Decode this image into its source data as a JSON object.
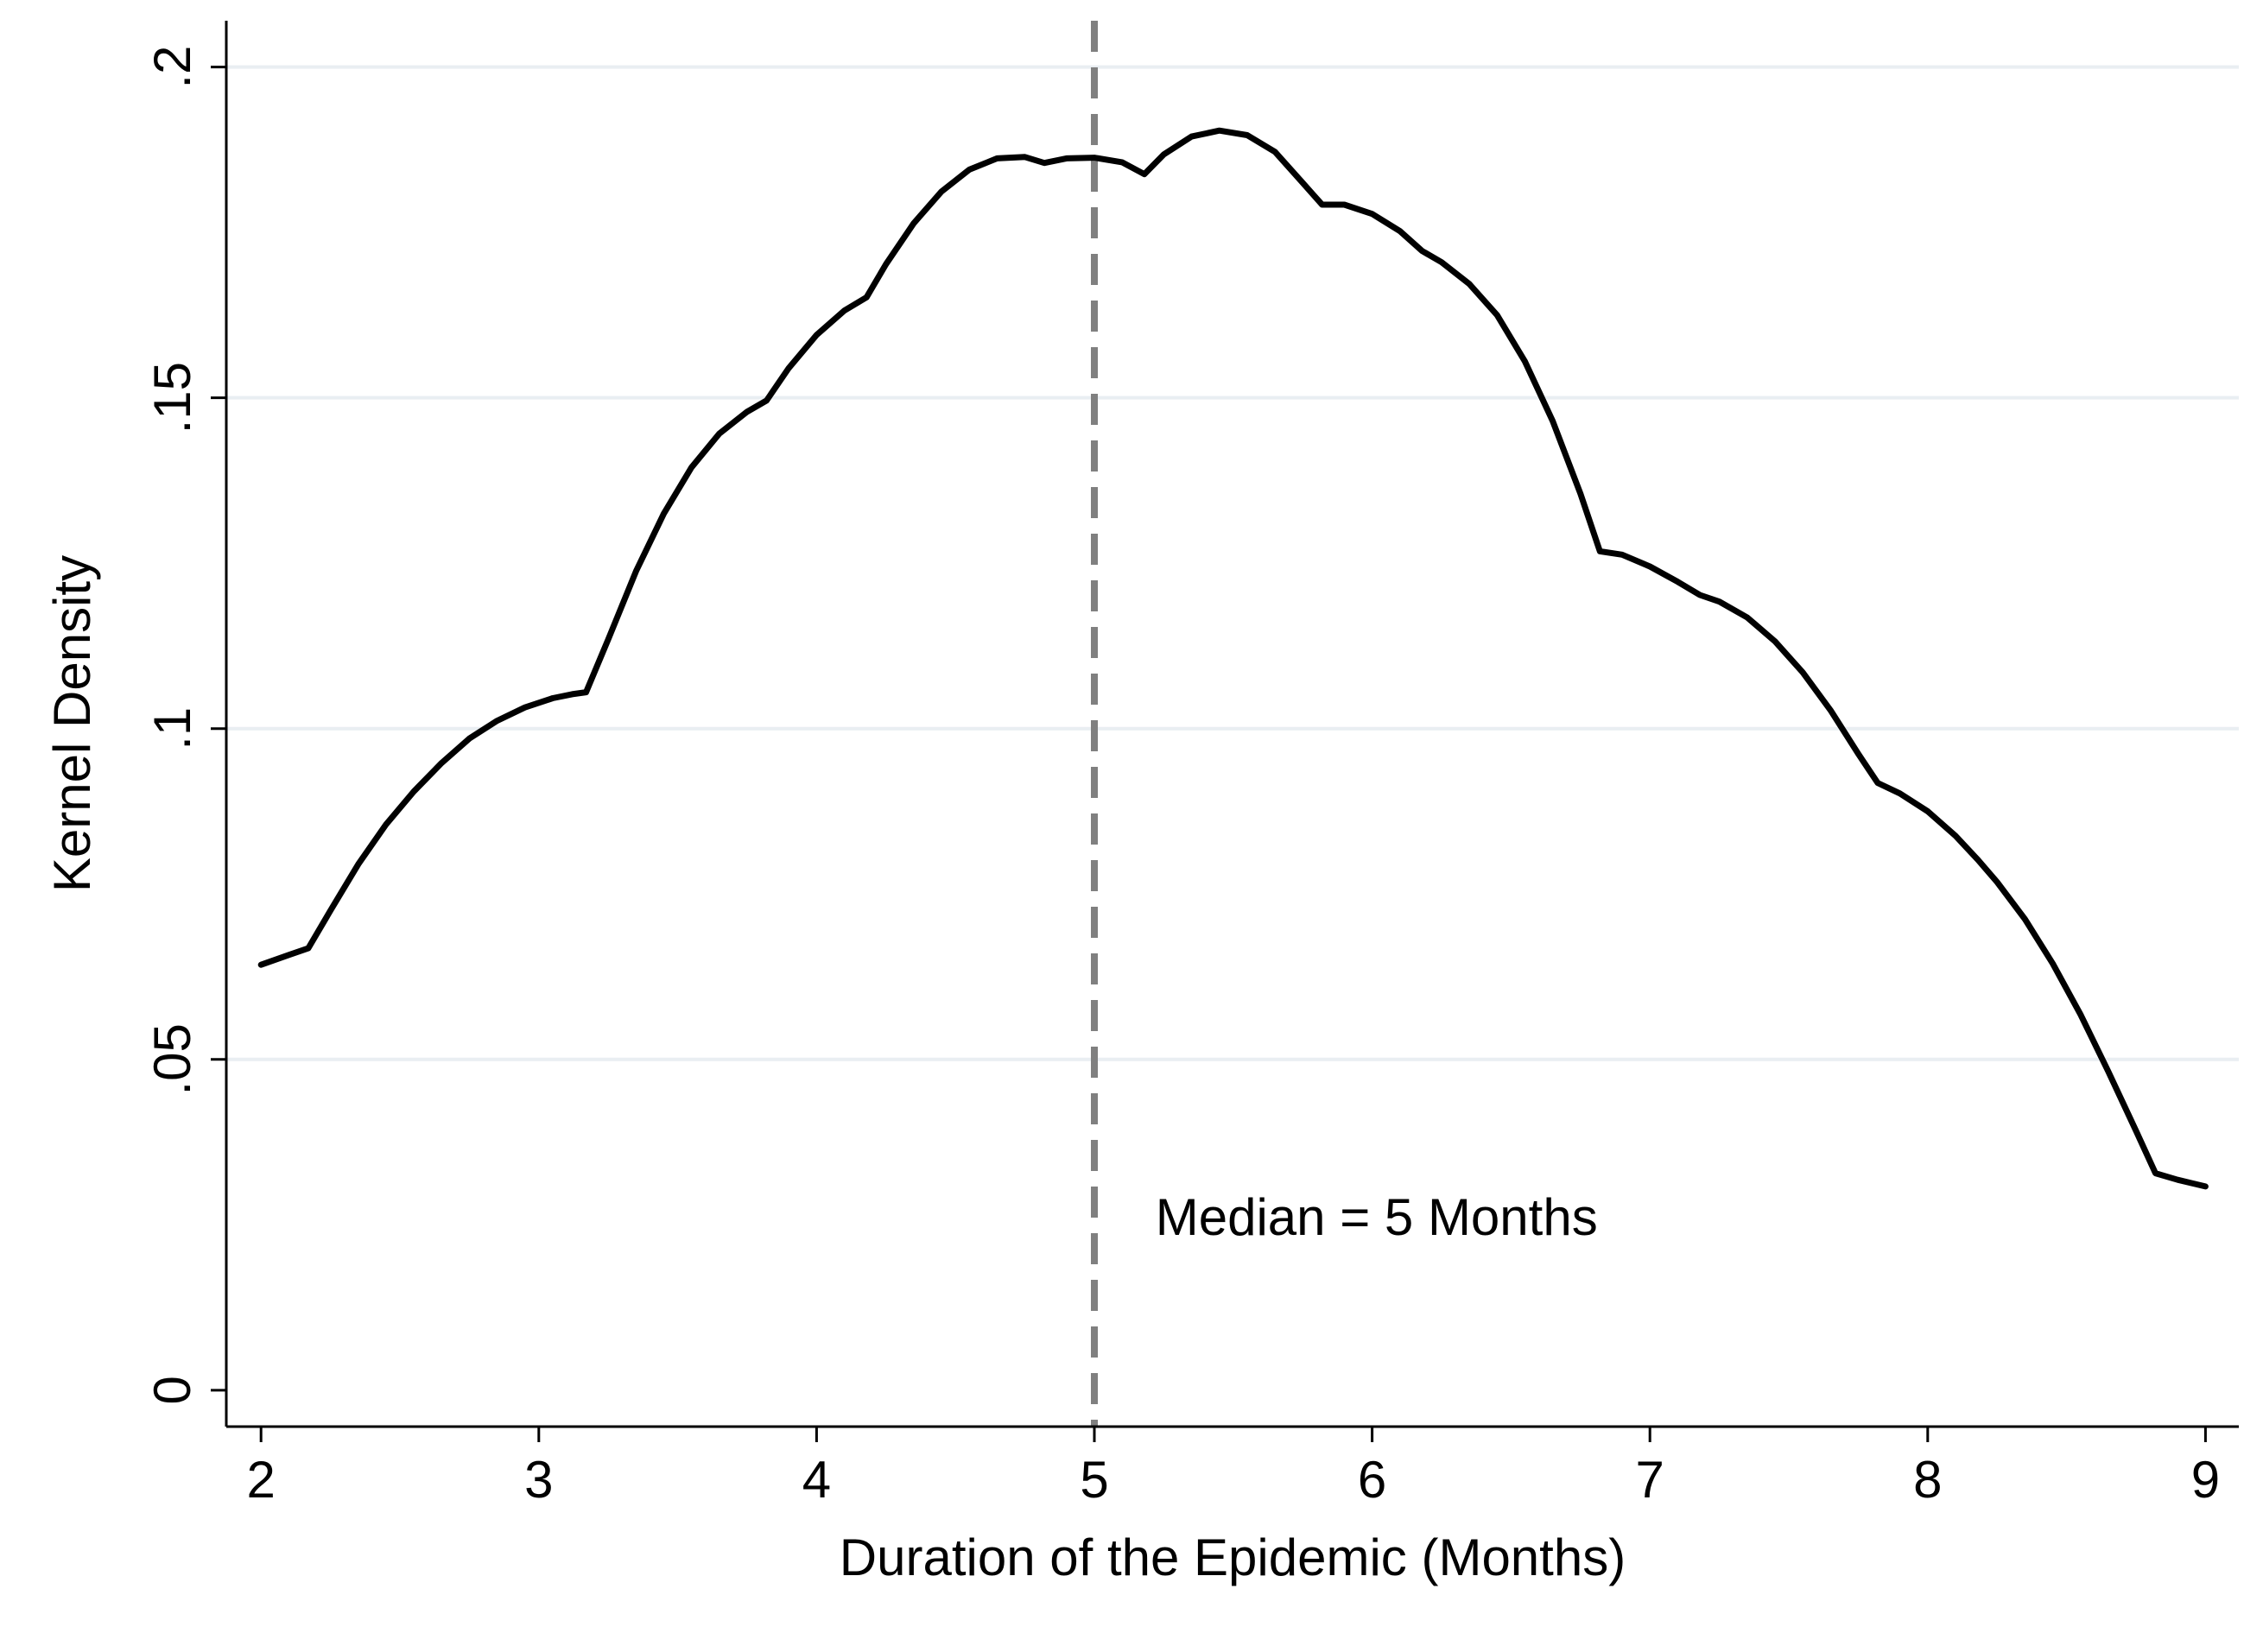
{
  "chart_data": {
    "type": "line",
    "title": "",
    "xlabel": "Duration of the Epidemic (Months)",
    "ylabel": "Kernel Density",
    "xlim": [
      1.875,
      9.12
    ],
    "ylim": [
      -0.0055,
      0.207
    ],
    "x_ticks": [
      2,
      3,
      4,
      5,
      6,
      7,
      8,
      9
    ],
    "x_tick_labels": [
      "2",
      "3",
      "4",
      "5",
      "6",
      "7",
      "8",
      "9"
    ],
    "y_ticks": [
      0,
      0.05,
      0.1,
      0.15,
      0.2
    ],
    "y_tick_labels": [
      "0",
      ".05",
      ".1",
      ".15",
      ".2"
    ],
    "grid": "horizontal",
    "legend": "none",
    "series": [
      {
        "x": [
          2.0,
          2.1,
          2.17,
          2.25,
          2.35,
          2.45,
          2.55,
          2.65,
          2.75,
          2.85,
          2.95,
          3.05,
          3.12,
          3.17,
          3.25,
          3.35,
          3.45,
          3.55,
          3.65,
          3.75,
          3.82,
          3.9,
          4.0,
          4.1,
          4.18,
          4.25,
          4.35,
          4.45,
          4.55,
          4.65,
          4.75,
          4.82,
          4.9,
          5.0,
          5.1,
          5.18,
          5.25,
          5.35,
          5.45,
          5.55,
          5.65,
          5.75,
          5.82,
          5.9,
          6.0,
          6.1,
          6.18,
          6.25,
          6.35,
          6.45,
          6.55,
          6.65,
          6.75,
          6.82,
          6.9,
          7.0,
          7.1,
          7.18,
          7.25,
          7.35,
          7.45,
          7.55,
          7.65,
          7.75,
          7.82,
          7.9,
          8.0,
          8.1,
          8.18,
          8.25,
          8.35,
          8.45,
          8.55,
          8.65,
          8.75,
          8.82,
          8.9,
          9.0
        ],
        "y": [
          0.0643,
          0.0658,
          0.0668,
          0.0725,
          0.0795,
          0.0855,
          0.0905,
          0.0948,
          0.0985,
          0.1012,
          0.1032,
          0.1046,
          0.1052,
          0.1055,
          0.1135,
          0.1238,
          0.1325,
          0.1395,
          0.1446,
          0.1479,
          0.1496,
          0.1545,
          0.1595,
          0.1632,
          0.1652,
          0.1702,
          0.1764,
          0.1812,
          0.1845,
          0.1862,
          0.1864,
          0.1855,
          0.1862,
          0.1863,
          0.1856,
          0.1838,
          0.1868,
          0.1895,
          0.1904,
          0.1897,
          0.1872,
          0.1825,
          0.1792,
          0.1792,
          0.1778,
          0.1752,
          0.1722,
          0.1705,
          0.1672,
          0.1625,
          0.1555,
          0.1465,
          0.1355,
          0.1268,
          0.1263,
          0.1245,
          0.1222,
          0.1202,
          0.1192,
          0.1168,
          0.1132,
          0.1085,
          0.1028,
          0.0962,
          0.0918,
          0.0902,
          0.0875,
          0.0838,
          0.0802,
          0.0768,
          0.0712,
          0.0645,
          0.0568,
          0.0482,
          0.0392,
          0.0328,
          0.0318,
          0.0308
        ]
      }
    ],
    "reference_line": {
      "x": 5,
      "style": "dashed",
      "color": "#808080"
    },
    "annotations": [
      {
        "text": "Median = 5 Months",
        "x": 5.22,
        "y": 0.0235
      }
    ]
  }
}
